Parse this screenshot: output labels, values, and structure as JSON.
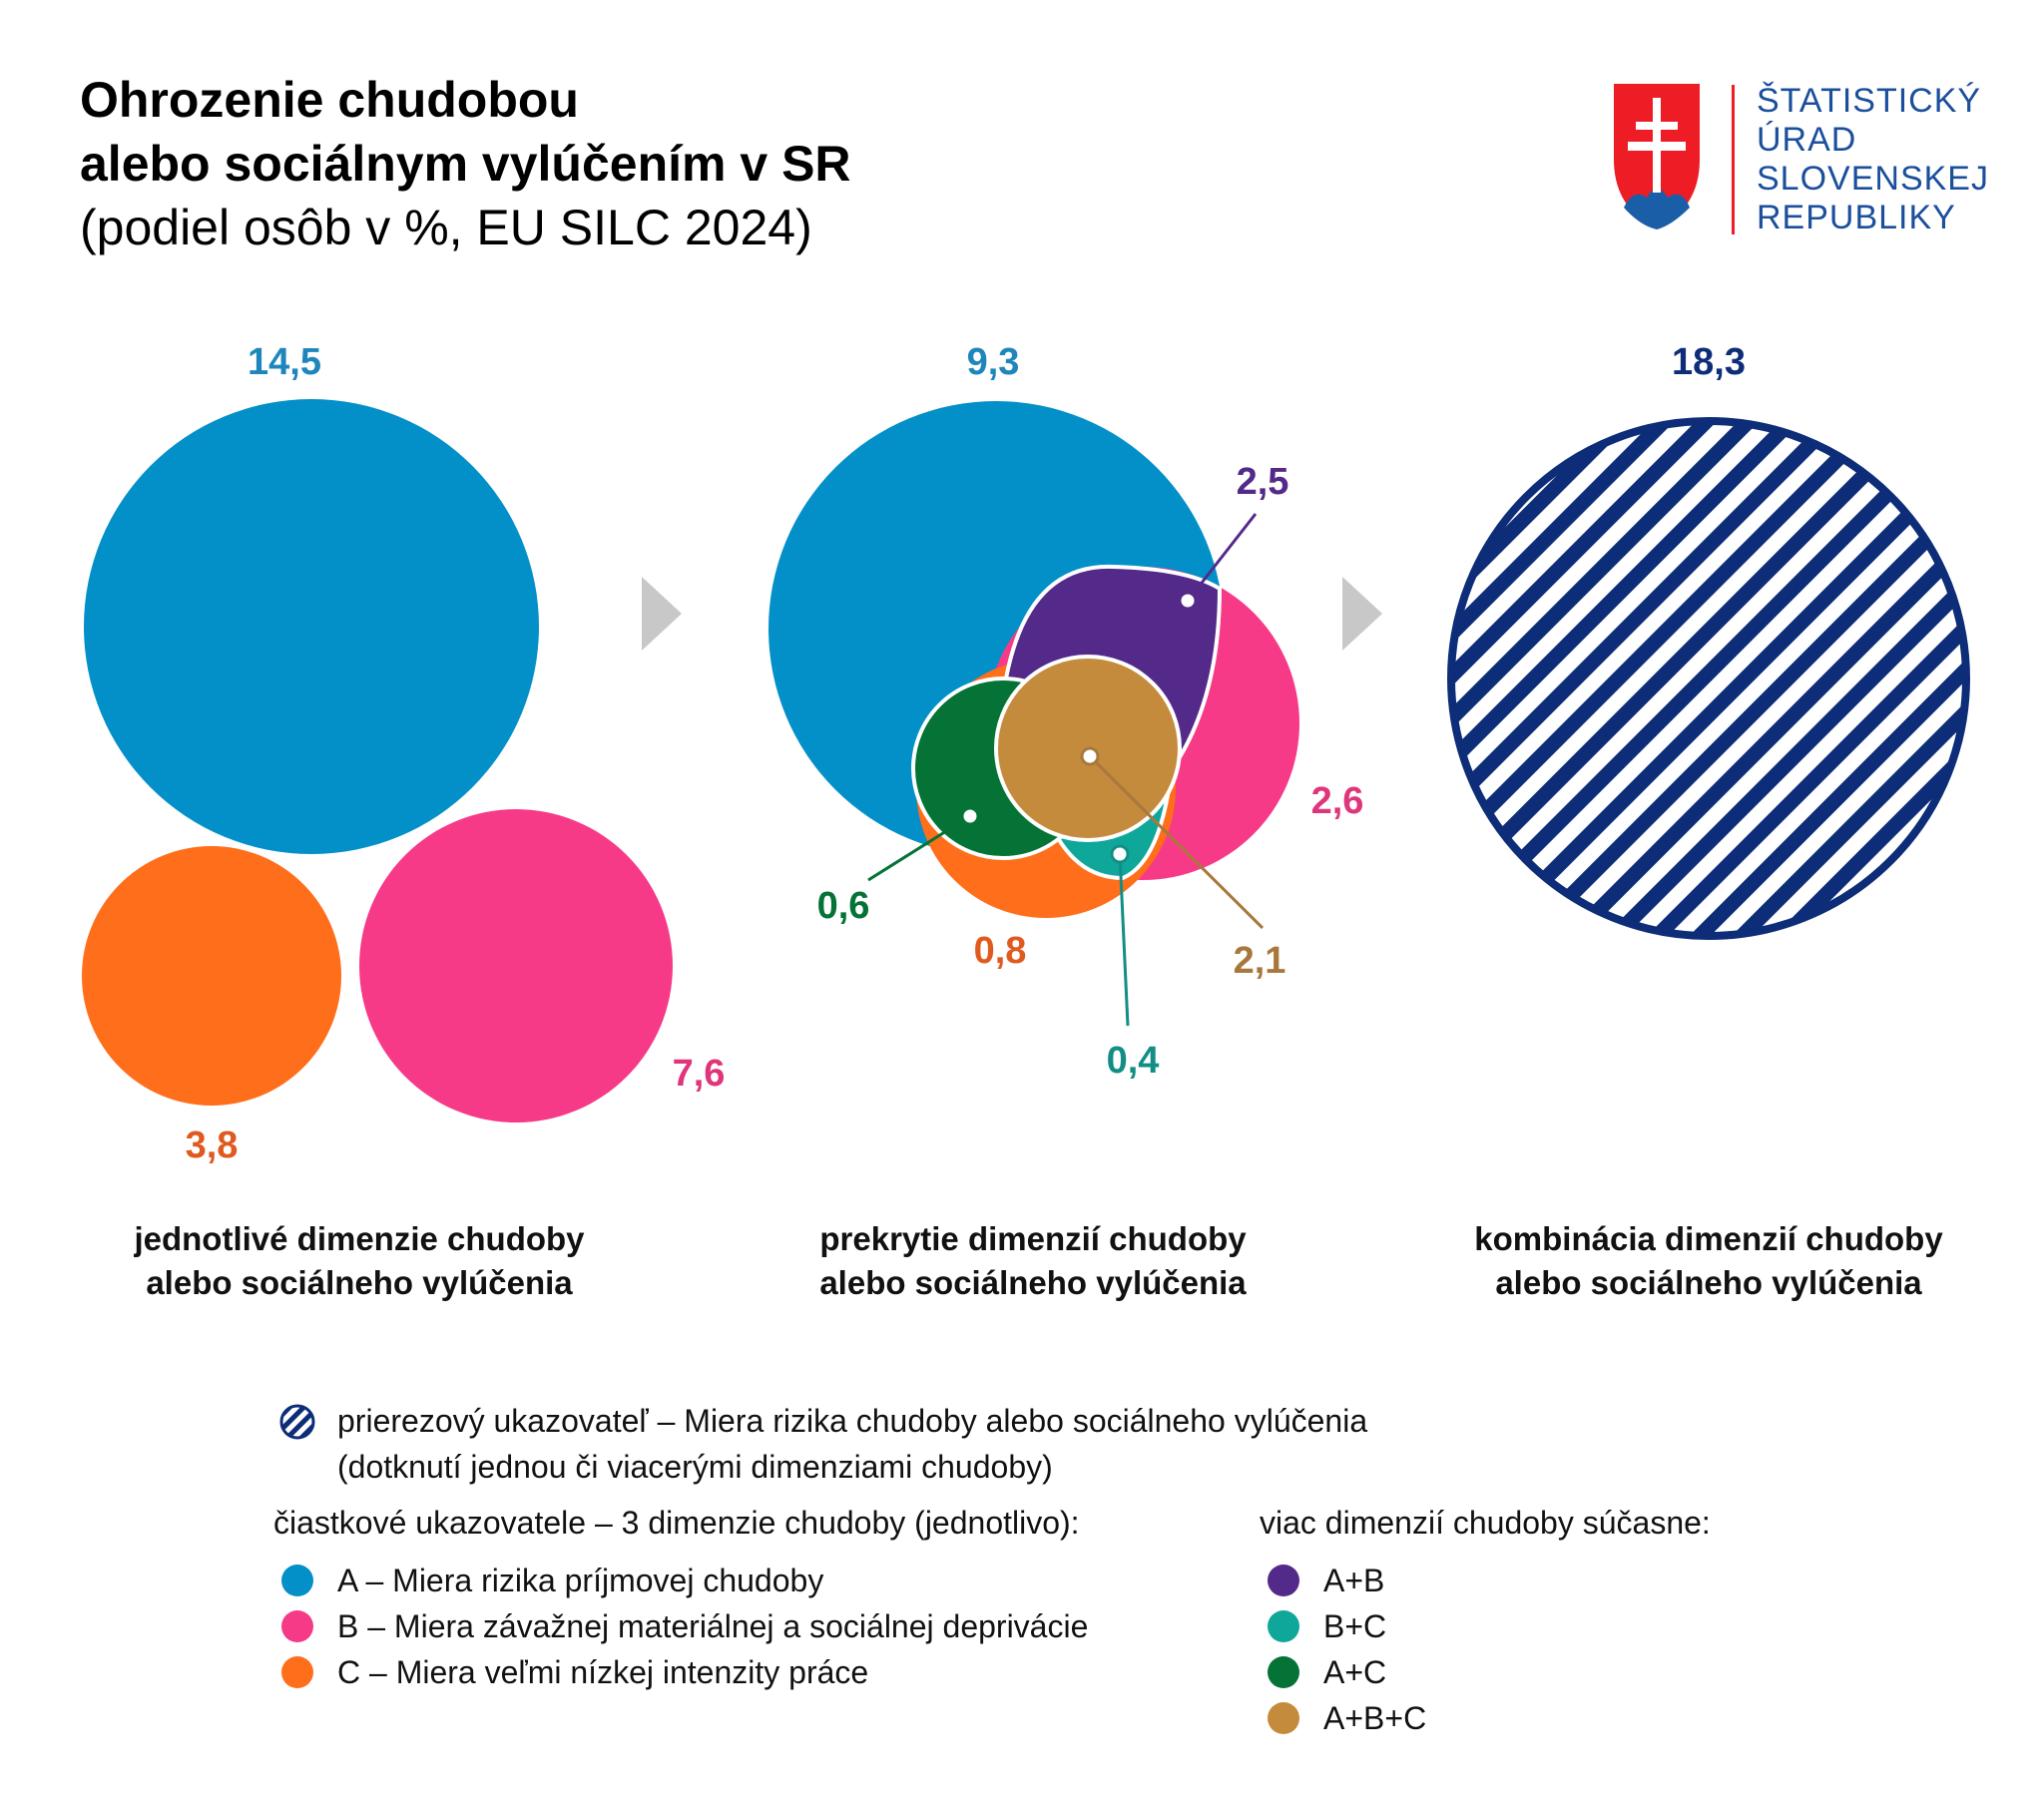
{
  "header": {
    "title_line1": "Ohrozenie chudobou",
    "title_line2": "alebo sociálnym vylúčením v SR",
    "subtitle": "(podiel osôb v %, EU SILC 2024)"
  },
  "logo": {
    "lines": [
      "ŠTATISTICKÝ",
      "ÚRAD",
      "SLOVENSKEJ",
      "REPUBLIKY"
    ],
    "emblem_icon": "slovak-coat-of-arms-icon"
  },
  "colors": {
    "A": "#0390c8",
    "B": "#f73a88",
    "C": "#ff6e1a",
    "AB": "#532a89",
    "BC": "#0fa79a",
    "AC": "#047335",
    "ABC": "#c48b3c",
    "total": "#0d2d78",
    "label_C": "#e05a20",
    "label_B": "#e0357b",
    "label_A": "#1f86bb",
    "label_ABC": "#a8773c",
    "label_BC": "#128e86",
    "arrow": "#c8c8c8"
  },
  "chart_data": [
    {
      "type": "bubble",
      "panel": "jednotlivé dimenzie chudoby alebo sociálneho vylúčenia",
      "series": [
        {
          "key": "A",
          "value": 14.5,
          "label": "14,5"
        },
        {
          "key": "B",
          "value": 7.6,
          "label": "7,6"
        },
        {
          "key": "C",
          "value": 3.8,
          "label": "3,8"
        }
      ]
    },
    {
      "type": "venn",
      "panel": "prekrytie dimenzií chudoby alebo sociálneho vylúčenia",
      "regions": [
        {
          "key": "A",
          "value": 9.3,
          "label": "9,3"
        },
        {
          "key": "B",
          "value": 2.6,
          "label": "2,6"
        },
        {
          "key": "C",
          "value": 0.8,
          "label": "0,8"
        },
        {
          "key": "A+B",
          "value": 2.5,
          "label": "2,5"
        },
        {
          "key": "A+C",
          "value": 0.6,
          "label": "0,6"
        },
        {
          "key": "B+C",
          "value": 0.4,
          "label": "0,4"
        },
        {
          "key": "A+B+C",
          "value": 2.1,
          "label": "2,1"
        }
      ]
    },
    {
      "type": "bubble",
      "panel": "kombinácia dimenzií chudoby alebo sociálneho vylúčenia",
      "series": [
        {
          "key": "total",
          "value": 18.3,
          "label": "18,3"
        }
      ]
    }
  ],
  "panels": {
    "left_label_1": "jednotlivé dimenzie chudoby",
    "left_label_2": "alebo sociálneho vylúčenia",
    "middle_label_1": "prekrytie dimenzií chudoby",
    "middle_label_2": "alebo sociálneho vylúčenia",
    "right_label_1": "kombinácia dimenzií chudoby",
    "right_label_2": "alebo sociálneho vylúčenia"
  },
  "legend": {
    "total_line1": "prierezový ukazovateľ – Miera rizika chudoby alebo sociálneho vylúčenia",
    "total_line2": "(dotknutí jednou či viacerými dimenziami chudoby)",
    "partial_heading": "čiastkové ukazovatele – 3 dimenzie chudoby (jednotlivo):",
    "partial_items": [
      {
        "key": "A",
        "label": "A – Miera rizika príjmovej chudoby"
      },
      {
        "key": "B",
        "label": "B – Miera závažnej materiálnej a sociálnej deprivácie"
      },
      {
        "key": "C",
        "label": "C – Miera veľmi nízkej intenzity práce"
      }
    ],
    "multi_heading": "viac dimenzií chudoby súčasne:",
    "multi_items": [
      {
        "key": "AB",
        "label": "A+B"
      },
      {
        "key": "BC",
        "label": "B+C"
      },
      {
        "key": "AC",
        "label": "A+C"
      },
      {
        "key": "ABC",
        "label": "A+B+C"
      }
    ]
  }
}
